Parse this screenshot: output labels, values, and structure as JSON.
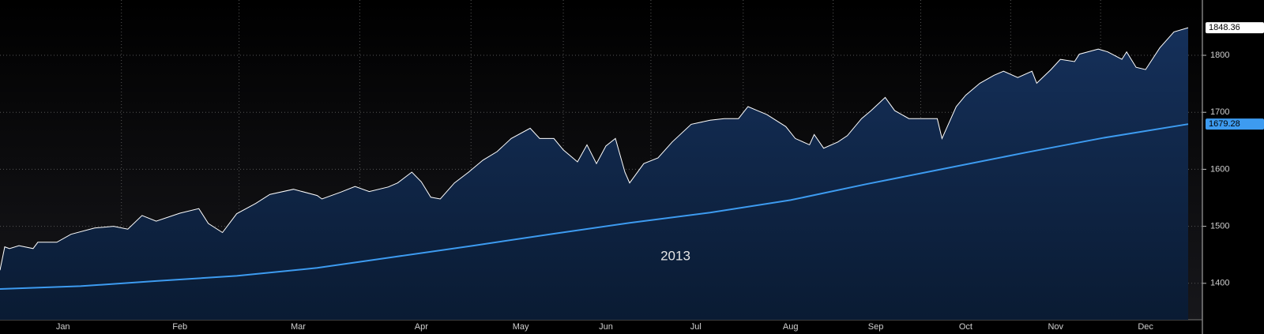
{
  "chart_data": {
    "type": "area-line",
    "annotation": "2013",
    "xlim": [
      0,
      254
    ],
    "xticks": [
      {
        "value": 13.3,
        "label": "Jan"
      },
      {
        "value": 38,
        "label": "Feb"
      },
      {
        "value": 63,
        "label": "Mar"
      },
      {
        "value": 89,
        "label": "Apr"
      },
      {
        "value": 110,
        "label": "May"
      },
      {
        "value": 128,
        "label": "Jun"
      },
      {
        "value": 147,
        "label": "Jul"
      },
      {
        "value": 167,
        "label": "Aug"
      },
      {
        "value": 185,
        "label": "Sep"
      },
      {
        "value": 204,
        "label": "Oct"
      },
      {
        "value": 223,
        "label": "Nov"
      },
      {
        "value": 242,
        "label": "Dec"
      }
    ],
    "ylim": [
      1336,
      1897
    ],
    "yticks": [
      1400,
      1500,
      1600,
      1700,
      1800
    ],
    "grid": true,
    "series": [
      {
        "color": "#ffffff",
        "fill": true,
        "x": [
          0,
          1,
          2,
          4,
          7,
          8,
          12,
          15,
          20,
          24,
          27,
          30,
          33,
          38,
          42,
          44,
          47,
          50,
          54,
          57,
          62,
          67,
          68,
          72,
          75,
          78,
          82,
          84,
          87,
          89,
          91,
          93,
          96,
          99,
          102,
          105,
          108,
          112,
          114,
          117,
          119,
          122,
          124,
          126,
          128,
          130,
          132,
          133,
          136,
          139,
          142,
          146,
          150,
          153,
          156,
          158,
          160,
          162,
          166,
          168,
          171,
          172,
          174,
          177,
          179,
          182,
          184,
          187,
          189,
          192,
          195,
          198,
          199,
          202,
          204,
          207,
          210,
          212,
          215,
          218,
          219,
          222,
          224,
          227,
          228,
          232,
          234,
          237,
          238,
          240,
          242,
          245,
          248,
          251
        ],
        "values": [
          1423,
          1464,
          1461,
          1466,
          1461,
          1472,
          1472,
          1486,
          1497,
          1500,
          1495,
          1519,
          1509,
          1523,
          1531,
          1505,
          1489,
          1522,
          1540,
          1556,
          1565,
          1554,
          1548,
          1560,
          1570,
          1561,
          1569,
          1576,
          1595,
          1578,
          1551,
          1548,
          1576,
          1595,
          1616,
          1631,
          1654,
          1672,
          1654,
          1654,
          1634,
          1613,
          1643,
          1610,
          1641,
          1654,
          1595,
          1576,
          1610,
          1620,
          1648,
          1679,
          1686,
          1689,
          1689,
          1710,
          1703,
          1696,
          1675,
          1654,
          1643,
          1661,
          1637,
          1648,
          1659,
          1689,
          1703,
          1726,
          1703,
          1689,
          1689,
          1689,
          1654,
          1710,
          1730,
          1751,
          1765,
          1772,
          1761,
          1772,
          1751,
          1775,
          1793,
          1789,
          1802,
          1811,
          1806,
          1793,
          1806,
          1779,
          1775,
          1813,
          1841,
          1848.36
        ]
      },
      {
        "color": "#3d9bf0",
        "fill": false,
        "x": [
          0,
          17,
          33,
          50,
          67,
          83,
          100,
          117,
          133,
          150,
          167,
          183,
          200,
          217,
          233,
          251
        ],
        "values": [
          1390,
          1395,
          1404,
          1413,
          1427,
          1446,
          1466,
          1487,
          1506,
          1524,
          1546,
          1574,
          1602,
          1630,
          1655,
          1679.28
        ]
      }
    ]
  }
}
